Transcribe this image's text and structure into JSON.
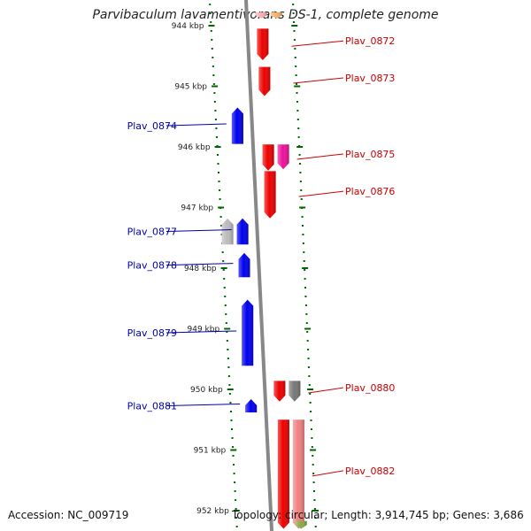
{
  "title": "Parvibaculum lavamentivorans DS-1, complete genome",
  "footer": {
    "accession_label": "Accession:",
    "accession": "NC_009719",
    "topology_label": "Topology:",
    "topology": "circular",
    "length_label": "Length:",
    "length": "3,914,745 bp",
    "genes_label": "Genes:",
    "genes": "3,686"
  },
  "colors": {
    "forward_label": "#cc0000",
    "reverse_label": "#0000aa",
    "tick": "#006600",
    "backbone": "#888888"
  },
  "scale": {
    "unit": "kbp",
    "ticks": [
      944,
      945,
      946,
      947,
      948,
      949,
      950,
      951,
      952
    ],
    "view_start_kbp": 943.81,
    "view_end_kbp": 952.3
  },
  "genes": [
    {
      "name": "",
      "strand": "+",
      "track": 1,
      "start": 943.78,
      "end": 943.88,
      "color": "#f8b0b0"
    },
    {
      "name": "",
      "strand": "+",
      "track": 2,
      "start": 943.78,
      "end": 943.88,
      "color": "#f5b070"
    },
    {
      "name": "Plav_0872",
      "strand": "+",
      "track": 1,
      "start": 944.05,
      "end": 944.57,
      "color": "#ee0000"
    },
    {
      "name": "Plav_0873",
      "strand": "+",
      "track": 1,
      "start": 944.68,
      "end": 945.16,
      "color": "#ee0000"
    },
    {
      "name": "Plav_0874",
      "strand": "-",
      "track": 1,
      "start": 945.35,
      "end": 945.95,
      "color": "#0000ee"
    },
    {
      "name": "Plav_0875",
      "strand": "+",
      "track": 1,
      "start": 945.96,
      "end": 946.39,
      "color": "#ee0000"
    },
    {
      "name": "",
      "strand": "+",
      "track": 2,
      "start": 945.96,
      "end": 946.37,
      "color": "#ee1199"
    },
    {
      "name": "Plav_0876",
      "strand": "+",
      "track": 1,
      "start": 946.4,
      "end": 947.18,
      "color": "#ee0000"
    },
    {
      "name": "",
      "strand": "-",
      "track": 2,
      "start": 947.18,
      "end": 947.61,
      "color": "#bbbbbb"
    },
    {
      "name": "Plav_0877",
      "strand": "-",
      "track": 1,
      "start": 947.18,
      "end": 947.61,
      "color": "#0000ee"
    },
    {
      "name": "Plav_0878",
      "strand": "-",
      "track": 1,
      "start": 947.75,
      "end": 948.15,
      "color": "#0000ee"
    },
    {
      "name": "Plav_0879",
      "strand": "-",
      "track": 1,
      "start": 948.52,
      "end": 949.61,
      "color": "#0000ee"
    },
    {
      "name": "Plav_0880",
      "strand": "+",
      "track": 1,
      "start": 949.86,
      "end": 950.2,
      "color": "#ee0000"
    },
    {
      "name": "",
      "strand": "+",
      "track": 2,
      "start": 949.86,
      "end": 950.2,
      "color": "#777777"
    },
    {
      "name": "Plav_0881",
      "strand": "-",
      "track": 1,
      "start": 950.16,
      "end": 950.38,
      "color": "#0000ee"
    },
    {
      "name": "Plav_0882",
      "strand": "+",
      "track": 1,
      "start": 950.5,
      "end": 952.3,
      "color": "#ee0000"
    },
    {
      "name": "",
      "strand": "+",
      "track": 2,
      "start": 950.5,
      "end": 952.3,
      "color": "#f08080"
    },
    {
      "name": "",
      "strand": "+",
      "track": 2,
      "start": 952.17,
      "end": 952.3,
      "color": "#88aa44"
    }
  ]
}
